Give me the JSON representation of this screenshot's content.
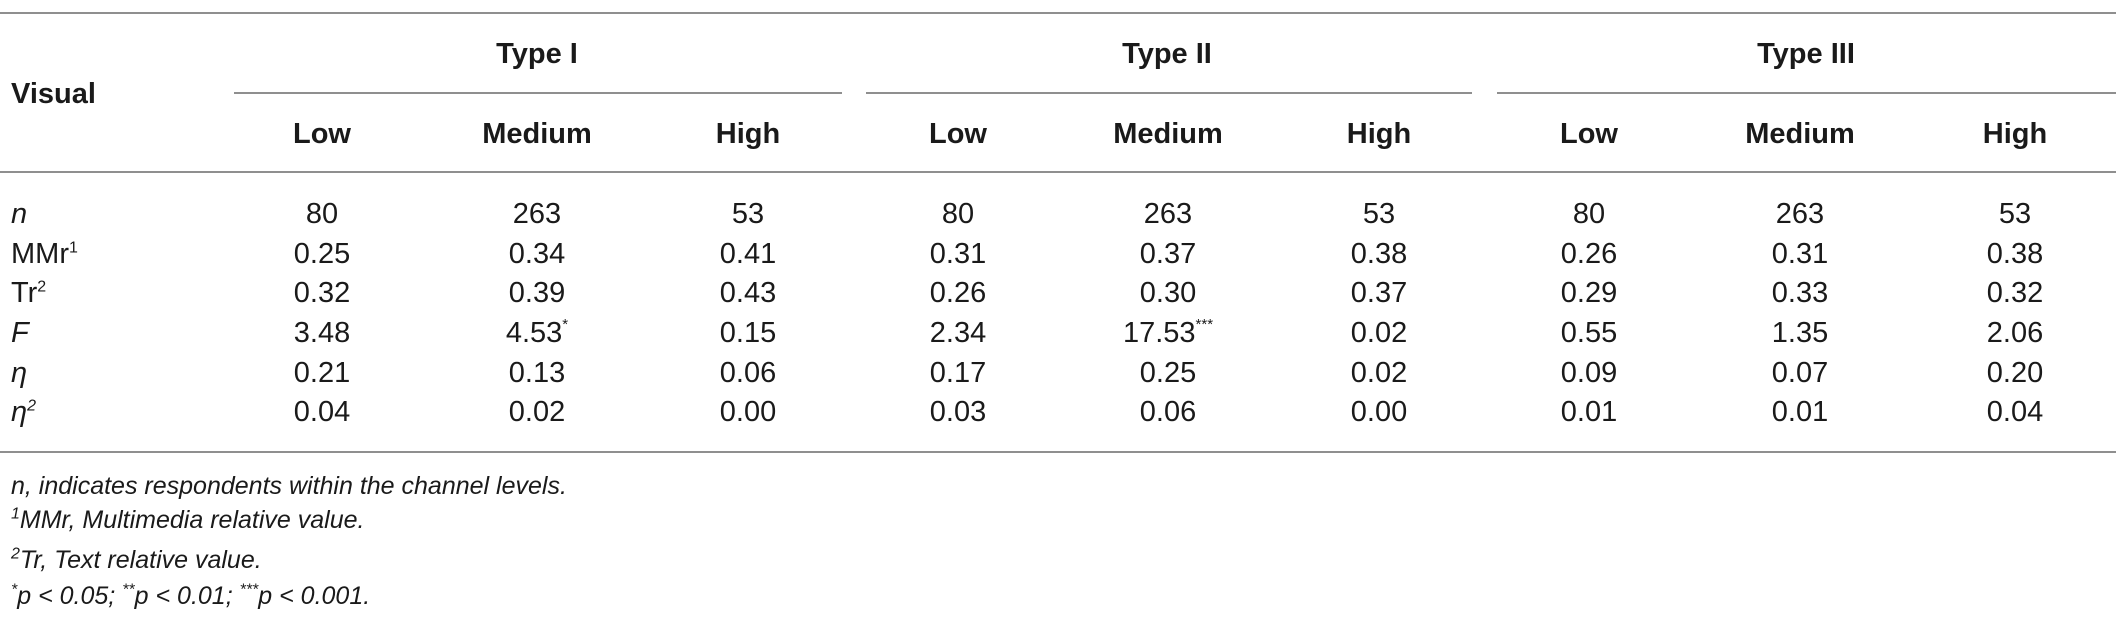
{
  "header": {
    "stub": "Visual",
    "groups": [
      {
        "label": "Type I",
        "levels": [
          "Low",
          "Medium",
          "High"
        ]
      },
      {
        "label": "Type II",
        "levels": [
          "Low",
          "Medium",
          "High"
        ]
      },
      {
        "label": "Type III",
        "levels": [
          "Low",
          "Medium",
          "High"
        ]
      }
    ]
  },
  "rows": [
    {
      "label": "n",
      "sup": "",
      "italic": true,
      "values": [
        "80",
        "263",
        "53",
        "80",
        "263",
        "53",
        "80",
        "263",
        "53"
      ],
      "marks": [
        "",
        "",
        "",
        "",
        "",
        "",
        "",
        "",
        ""
      ]
    },
    {
      "label": "MMr",
      "sup": "1",
      "italic": false,
      "values": [
        "0.25",
        "0.34",
        "0.41",
        "0.31",
        "0.37",
        "0.38",
        "0.26",
        "0.31",
        "0.38"
      ],
      "marks": [
        "",
        "",
        "",
        "",
        "",
        "",
        "",
        "",
        ""
      ]
    },
    {
      "label": "Tr",
      "sup": "2",
      "italic": false,
      "values": [
        "0.32",
        "0.39",
        "0.43",
        "0.26",
        "0.30",
        "0.37",
        "0.29",
        "0.33",
        "0.32"
      ],
      "marks": [
        "",
        "",
        "",
        "",
        "",
        "",
        "",
        "",
        ""
      ]
    },
    {
      "label": "F",
      "sup": "",
      "italic": true,
      "values": [
        "3.48",
        "4.53",
        "0.15",
        "2.34",
        "17.53",
        "0.02",
        "0.55",
        "1.35",
        "2.06"
      ],
      "marks": [
        "",
        "*",
        "",
        "",
        "***",
        "",
        "",
        "",
        ""
      ]
    },
    {
      "label": "η",
      "sup": "",
      "italic": true,
      "values": [
        "0.21",
        "0.13",
        "0.06",
        "0.17",
        "0.25",
        "0.02",
        "0.09",
        "0.07",
        "0.20"
      ],
      "marks": [
        "",
        "",
        "",
        "",
        "",
        "",
        "",
        "",
        ""
      ]
    },
    {
      "label": "η",
      "sup": "2",
      "italic": true,
      "values": [
        "0.04",
        "0.02",
        "0.00",
        "0.03",
        "0.06",
        "0.00",
        "0.01",
        "0.01",
        "0.04"
      ],
      "marks": [
        "",
        "",
        "",
        "",
        "",
        "",
        "",
        "",
        ""
      ]
    }
  ],
  "notes": {
    "n_note": "n, indicates respondents within the channel levels.",
    "mmr_sup": "1",
    "mmr_note": "MMr, Multimedia relative value.",
    "tr_sup": "2",
    "tr_note": "Tr, Text relative value.",
    "sig_star1": "*",
    "sig_text1": "p < 0.05; ",
    "sig_star2": "**",
    "sig_text2": "p < 0.01; ",
    "sig_star3": "***",
    "sig_text3": "p < 0.001."
  }
}
